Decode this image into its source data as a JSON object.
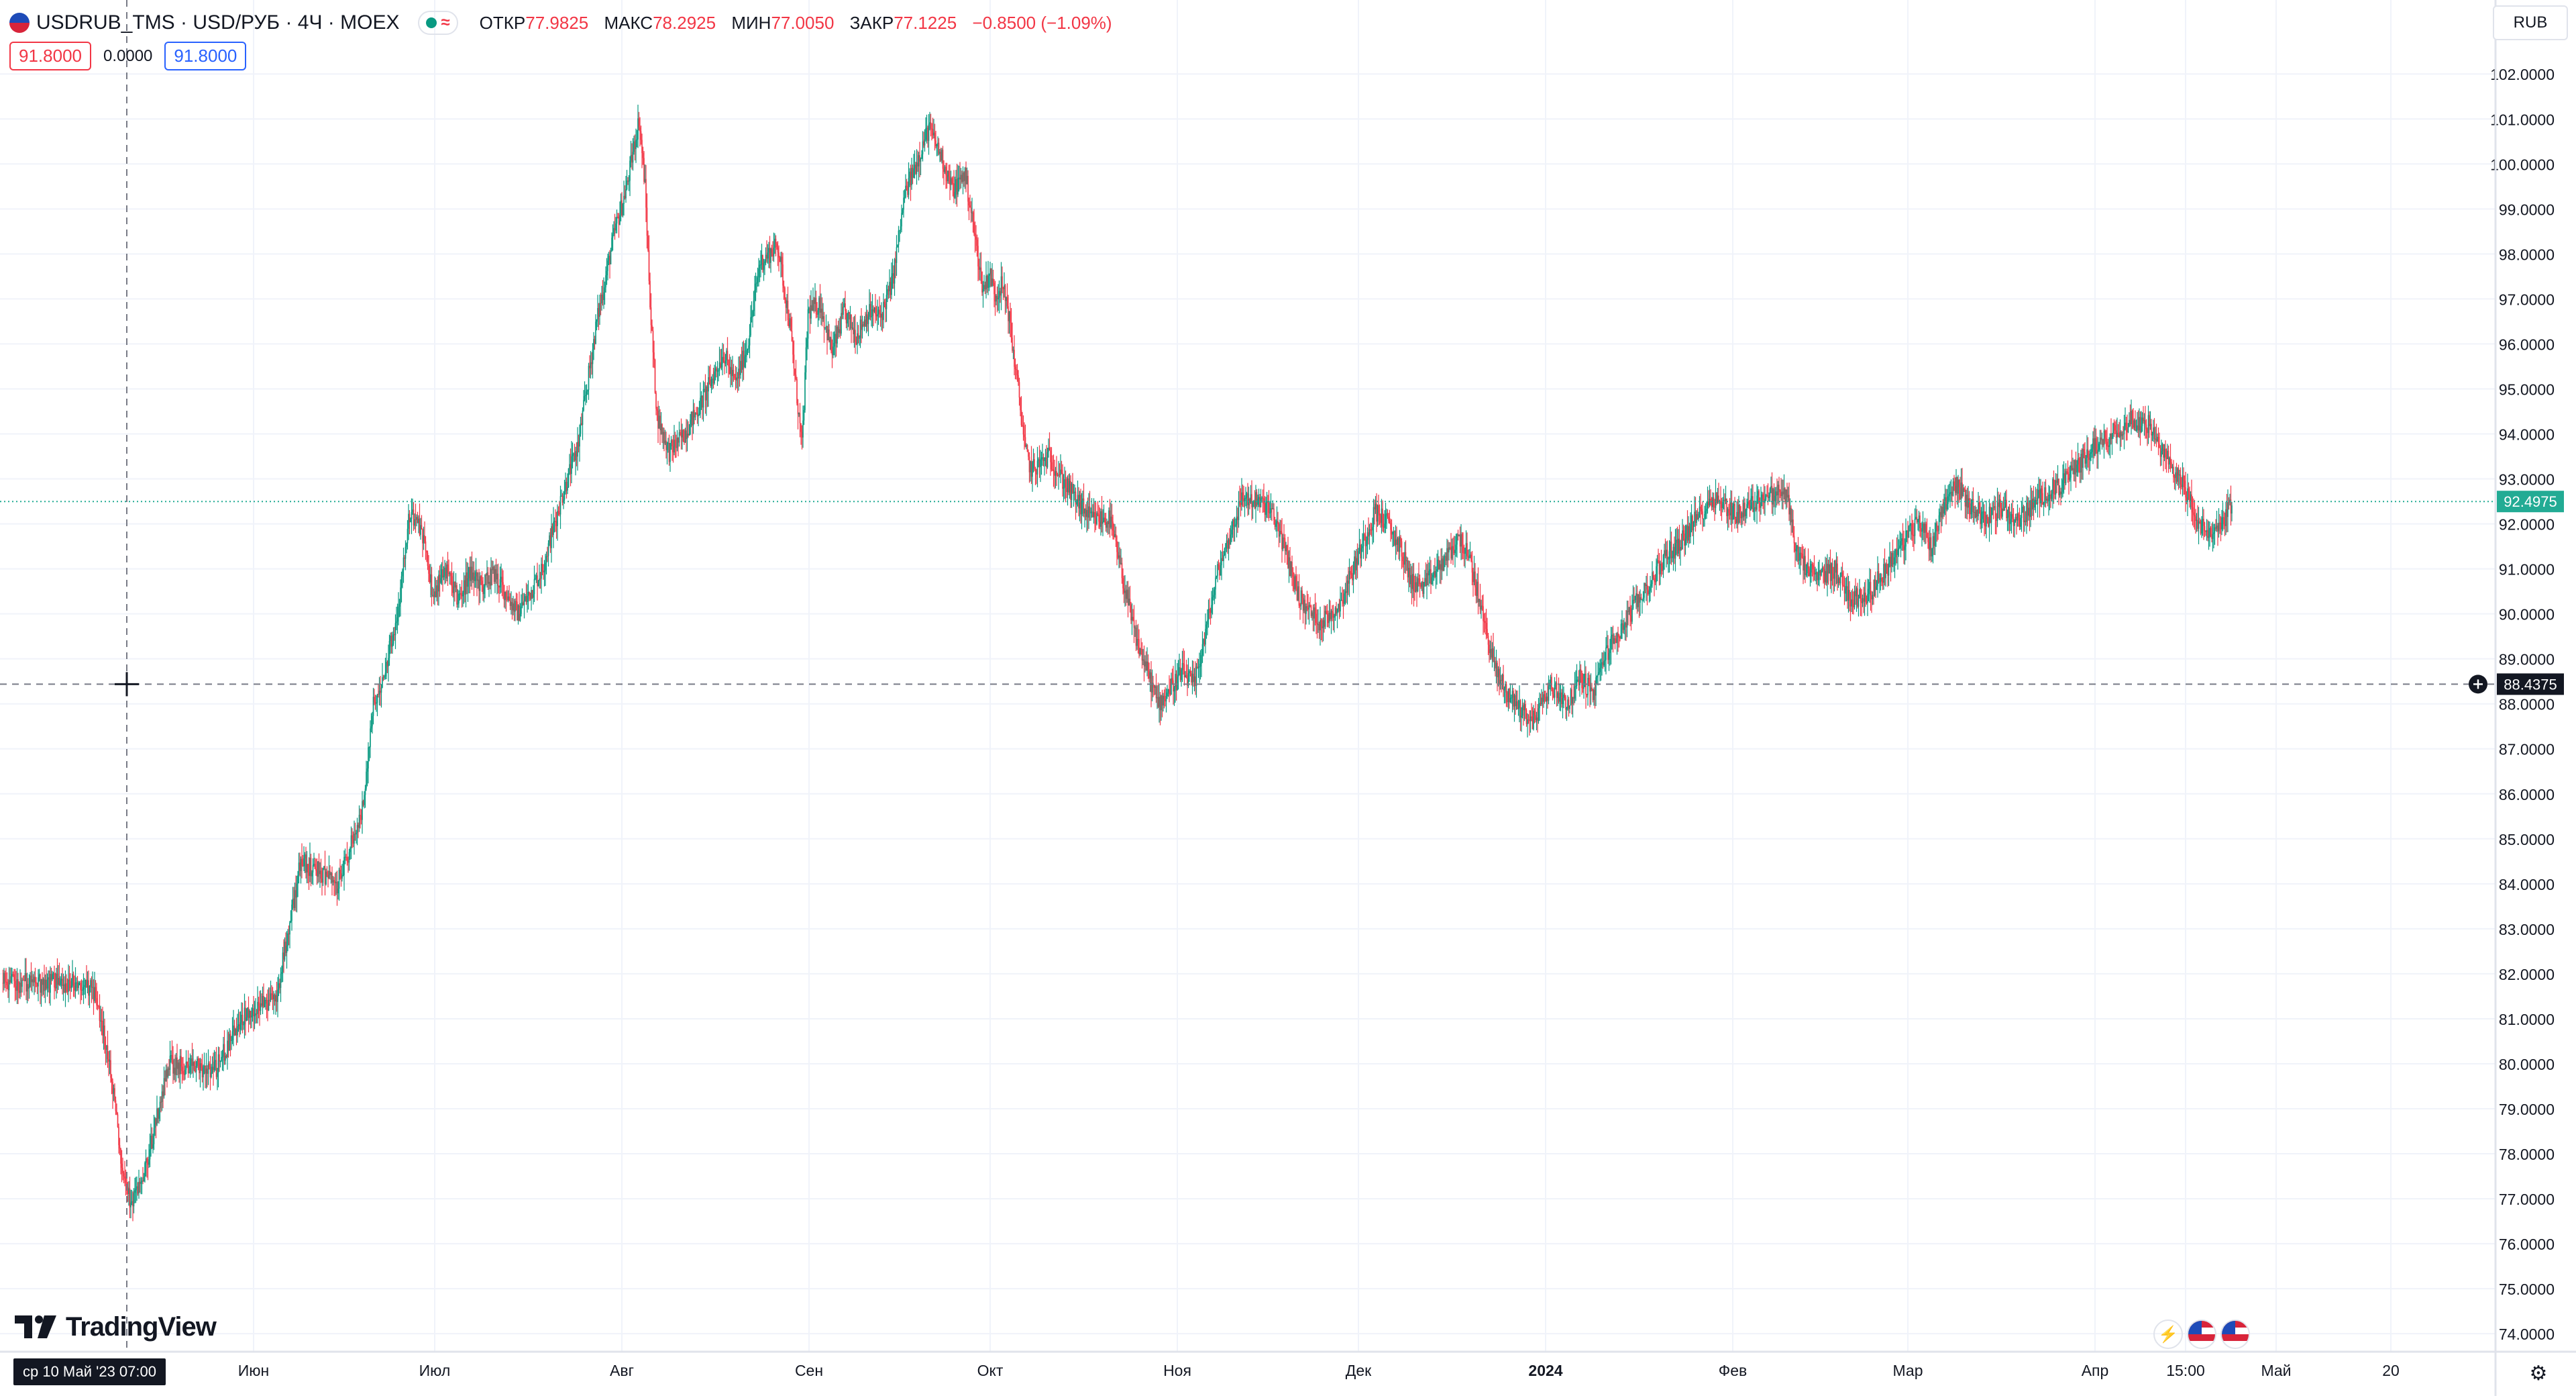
{
  "header": {
    "symbol_label": "USDRUB_TMS · USD/РУБ · 4Ч · MOEX",
    "wave_glyph": "≈",
    "ohlc": [
      {
        "label": "ОТКР",
        "value": "77.9825"
      },
      {
        "label": "МАКС",
        "value": "78.2925"
      },
      {
        "label": "МИН",
        "value": "77.0050"
      },
      {
        "label": "ЗАКР",
        "value": "77.1225"
      }
    ],
    "change": "−0.8500 (−1.09%)"
  },
  "trade": {
    "sell_price": "91.8000",
    "spread": "0.0000",
    "buy_price": "91.8000"
  },
  "currency_button": "RUB",
  "branding": {
    "logo_text": "TradingView"
  },
  "crosshair": {
    "time_label": "ср 10 Май '23   07:00",
    "price_label": "88.4375",
    "price": 88.4375,
    "day_index": 5
  },
  "colors": {
    "up": "#089981",
    "down": "#f23645",
    "last_price_bg": "#22ab94",
    "grid": "#f0f3fa",
    "text": "#131722"
  },
  "chart_data": {
    "type": "candlestick",
    "ylim": [
      73.6,
      102.6
    ],
    "y_ticks": [
      74,
      75,
      76,
      77,
      78,
      79,
      80,
      81,
      82,
      83,
      84,
      85,
      86,
      87,
      88,
      89,
      90,
      91,
      92,
      93,
      94,
      95,
      96,
      97,
      98,
      99,
      100,
      101,
      102
    ],
    "x_range": [
      0,
      365
    ],
    "x_ticks": [
      {
        "label": "Июн",
        "day": 26,
        "bold": false
      },
      {
        "label": "Июл",
        "day": 56,
        "bold": false
      },
      {
        "label": "Авг",
        "day": 87,
        "bold": false
      },
      {
        "label": "Сен",
        "day": 118,
        "bold": false
      },
      {
        "label": "Окт",
        "day": 148,
        "bold": false
      },
      {
        "label": "Ноя",
        "day": 179,
        "bold": false
      },
      {
        "label": "Дек",
        "day": 209,
        "bold": false
      },
      {
        "label": "2024",
        "day": 240,
        "bold": true
      },
      {
        "label": "Фев",
        "day": 271,
        "bold": false
      },
      {
        "label": "Мар",
        "day": 300,
        "bold": false
      },
      {
        "label": "Апр",
        "day": 331,
        "bold": false
      },
      {
        "label": "15:00",
        "day": 346,
        "bold": false
      },
      {
        "label": "Май",
        "day": 361,
        "bold": false
      },
      {
        "label": "20",
        "day": 380,
        "bold": false
      }
    ],
    "last_price": 92.4975,
    "last_price_label": "92.4975",
    "path_day": [
      -8,
      -4,
      0,
      2,
      3,
      4,
      6,
      8,
      12,
      16,
      20,
      24,
      30,
      34,
      38,
      40,
      44,
      46,
      48,
      50,
      52,
      54,
      55,
      56,
      57,
      58,
      60,
      62,
      64,
      66,
      70,
      74,
      77,
      80,
      83,
      86,
      88,
      90,
      91,
      92,
      93,
      95,
      97,
      100,
      104,
      106,
      108,
      110,
      113,
      115,
      117,
      118,
      120,
      122,
      124,
      126,
      128,
      130,
      132,
      134,
      138,
      140,
      142,
      144,
      147,
      148,
      149,
      150,
      151,
      152,
      153,
      154,
      155,
      158,
      160,
      162,
      165,
      168,
      172,
      176,
      180,
      182,
      186,
      190,
      194,
      196,
      197,
      198,
      199,
      200,
      203,
      206,
      208,
      212,
      214,
      216,
      218,
      220,
      224,
      226,
      228,
      230,
      232,
      234,
      238,
      241,
      244,
      246,
      248,
      250,
      252,
      255,
      258,
      260,
      262,
      265,
      268,
      272,
      276,
      280,
      282,
      285,
      288,
      291,
      294,
      297,
      300,
      302,
      304,
      306,
      308,
      310,
      313,
      316,
      318,
      320,
      323,
      326,
      330,
      334,
      337,
      340,
      342,
      344,
      346,
      348,
      350,
      352,
      354,
      356,
      358
    ],
    "path_price": [
      81.8,
      81.8,
      81.6,
      80.2,
      79.3,
      78.0,
      76.8,
      77.5,
      80.0,
      79.9,
      79.9,
      81.0,
      81.5,
      84.5,
      84.2,
      84.0,
      85.5,
      88.0,
      88.8,
      90.0,
      92.2,
      91.8,
      91.2,
      90.3,
      90.8,
      91.0,
      90.3,
      90.9,
      90.6,
      90.9,
      90.0,
      91.0,
      92.5,
      93.8,
      96.5,
      98.5,
      99.5,
      101.0,
      99.5,
      96.5,
      94.4,
      93.6,
      93.9,
      94.6,
      95.8,
      95.1,
      96.0,
      97.8,
      98.2,
      96.4,
      93.7,
      96.7,
      96.9,
      95.8,
      96.7,
      96.2,
      96.7,
      96.6,
      97.4,
      99.3,
      100.8,
      100.2,
      99.4,
      99.8,
      97.2,
      97.6,
      97.1,
      97.3,
      96.9,
      95.8,
      94.8,
      93.6,
      93.2,
      93.5,
      93.0,
      92.6,
      92.1,
      92.1,
      89.6,
      88.0,
      88.7,
      88.4,
      91.0,
      92.6,
      92.4,
      91.9,
      91.4,
      91.0,
      90.5,
      90.2,
      89.8,
      90.2,
      90.9,
      92.3,
      92.0,
      91.5,
      90.7,
      90.6,
      91.3,
      91.7,
      91.0,
      89.8,
      88.7,
      88.2,
      87.6,
      88.4,
      88.0,
      88.6,
      88.2,
      89.1,
      89.5,
      90.2,
      90.8,
      91.3,
      91.5,
      92.1,
      92.6,
      92.2,
      92.6,
      92.7,
      91.2,
      90.8,
      91.0,
      90.3,
      90.5,
      91.1,
      91.7,
      92.1,
      91.5,
      92.4,
      92.9,
      92.5,
      92.1,
      92.4,
      92.0,
      92.3,
      92.7,
      92.9,
      93.6,
      94.0,
      94.3,
      94.2,
      93.6,
      93.3,
      92.8,
      92.1,
      91.7,
      92.0,
      92.5
    ]
  }
}
